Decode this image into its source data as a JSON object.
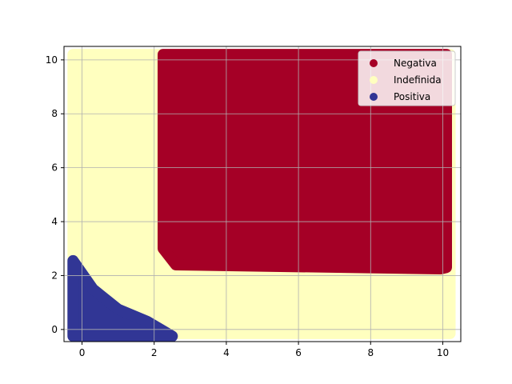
{
  "chart_data": {
    "type": "scatter",
    "title": "",
    "xlabel": "",
    "ylabel": "",
    "xlim": [
      -0.5,
      10.5
    ],
    "ylim": [
      -0.45,
      10.5
    ],
    "xticks": [
      0,
      2,
      4,
      6,
      8,
      10
    ],
    "yticks": [
      0,
      2,
      4,
      6,
      8,
      10
    ],
    "grid": true,
    "legend_position": "upper-right",
    "series": [
      {
        "name": "Negativa",
        "color": "#a50026",
        "description_region": [
          [
            2.3,
            10.2
          ],
          [
            10.1,
            10.2
          ],
          [
            10.1,
            2.3
          ],
          [
            9.95,
            2.25
          ],
          [
            2.6,
            2.4
          ],
          [
            2.25,
            3.0
          ],
          [
            2.25,
            10.2
          ]
        ]
      },
      {
        "name": "Indefinida",
        "color": "#ffffbf",
        "description_region": [
          [
            -0.25,
            10.2
          ],
          [
            10.2,
            10.2
          ],
          [
            10.2,
            -0.15
          ],
          [
            -0.25,
            -0.15
          ]
        ]
      },
      {
        "name": "Positiva",
        "color": "#313695",
        "description_region": [
          [
            -0.25,
            2.55
          ],
          [
            0.3,
            1.5
          ],
          [
            1.0,
            0.75
          ],
          [
            1.8,
            0.3
          ],
          [
            2.5,
            -0.25
          ],
          [
            -0.25,
            -0.25
          ]
        ]
      }
    ]
  }
}
